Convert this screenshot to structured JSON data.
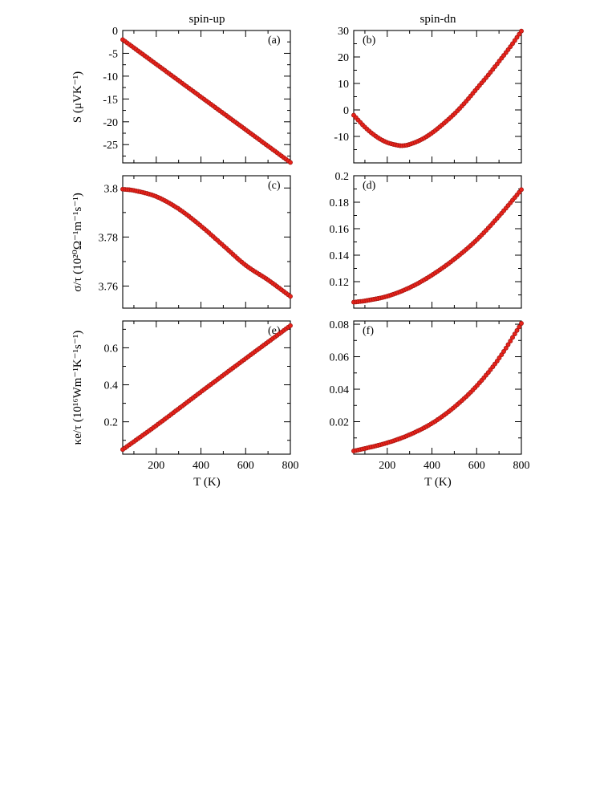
{
  "column_titles": [
    "spin-up",
    "spin-dn"
  ],
  "row_ylabels": [
    "S (μVK⁻¹)",
    "σ/τ (10²⁰Ω⁻¹m⁻¹s⁻¹)",
    "κe/τ (10¹⁶Wm⁻¹K⁻¹s⁻¹)"
  ],
  "xlabel": "T (K)",
  "colors": {
    "marker": "#e8231b",
    "marker_edge": "#9e1410",
    "axis": "#000000"
  },
  "chart_data": [
    {
      "type": "scatter",
      "label": "(a)",
      "column": "spin-up",
      "xlim": [
        50,
        800
      ],
      "ylim": [
        -29,
        0
      ],
      "xticks": [
        200,
        400,
        600,
        800
      ],
      "yticks": [
        0,
        -5,
        -10,
        -15,
        -20,
        -25
      ],
      "ytick_labels": [
        "0",
        "-5",
        "-10",
        "-15",
        "-20",
        "-25"
      ],
      "model": "linear",
      "points": [
        [
          50,
          -2.0
        ],
        [
          200,
          -7.4
        ],
        [
          400,
          -14.6
        ],
        [
          600,
          -21.8
        ],
        [
          800,
          -28.9
        ]
      ]
    },
    {
      "type": "scatter",
      "label": "(b)",
      "column": "spin-dn",
      "xlim": [
        50,
        800
      ],
      "ylim": [
        -20,
        30
      ],
      "xticks": [
        200,
        400,
        600,
        800
      ],
      "yticks": [
        30,
        20,
        10,
        0,
        -10
      ],
      "ytick_labels": [
        "30",
        "20",
        "10",
        "0",
        "-10"
      ],
      "model": "spline",
      "points": [
        [
          50,
          -2.0
        ],
        [
          100,
          -6.5
        ],
        [
          150,
          -10.0
        ],
        [
          200,
          -12.3
        ],
        [
          250,
          -13.4
        ],
        [
          270,
          -13.5
        ],
        [
          300,
          -13.0
        ],
        [
          350,
          -11.3
        ],
        [
          400,
          -8.7
        ],
        [
          450,
          -5.3
        ],
        [
          500,
          -1.5
        ],
        [
          550,
          3.0
        ],
        [
          600,
          8.0
        ],
        [
          650,
          13.0
        ],
        [
          700,
          18.3
        ],
        [
          750,
          23.8
        ],
        [
          800,
          29.8
        ]
      ]
    },
    {
      "type": "scatter",
      "label": "(c)",
      "column": "spin-up",
      "xlim": [
        50,
        800
      ],
      "ylim": [
        3.751,
        3.805
      ],
      "xticks": [
        200,
        400,
        600,
        800
      ],
      "yticks": [
        3.8,
        3.78,
        3.76
      ],
      "ytick_labels": [
        "3.8",
        "3.78",
        "3.76"
      ],
      "model": "spline",
      "points": [
        [
          50,
          3.7995
        ],
        [
          100,
          3.799
        ],
        [
          200,
          3.7965
        ],
        [
          300,
          3.7915
        ],
        [
          400,
          3.7845
        ],
        [
          500,
          3.7765
        ],
        [
          600,
          3.7685
        ],
        [
          700,
          3.7625
        ],
        [
          800,
          3.7558
        ]
      ]
    },
    {
      "type": "scatter",
      "label": "(d)",
      "column": "spin-dn",
      "xlim": [
        50,
        800
      ],
      "ylim": [
        0.1,
        0.2
      ],
      "xticks": [
        200,
        400,
        600,
        800
      ],
      "yticks": [
        0.2,
        0.18,
        0.16,
        0.14,
        0.12
      ],
      "ytick_labels": [
        "0.2",
        "0.18",
        "0.16",
        "0.14",
        "0.12"
      ],
      "model": "spline",
      "points": [
        [
          50,
          0.1045
        ],
        [
          100,
          0.1055
        ],
        [
          200,
          0.109
        ],
        [
          300,
          0.1155
        ],
        [
          400,
          0.125
        ],
        [
          500,
          0.137
        ],
        [
          600,
          0.1515
        ],
        [
          700,
          0.1695
        ],
        [
          800,
          0.1895
        ]
      ]
    },
    {
      "type": "scatter",
      "label": "(e)",
      "column": "spin-up",
      "xlim": [
        50,
        800
      ],
      "ylim": [
        0.025,
        0.745
      ],
      "xticks": [
        200,
        400,
        600,
        800
      ],
      "yticks": [
        0.6,
        0.4,
        0.2
      ],
      "ytick_labels": [
        "0.6",
        "0.4",
        "0.2"
      ],
      "model": "spline",
      "points": [
        [
          50,
          0.05
        ],
        [
          200,
          0.18
        ],
        [
          400,
          0.362
        ],
        [
          600,
          0.542
        ],
        [
          800,
          0.72
        ]
      ]
    },
    {
      "type": "scatter",
      "label": "(f)",
      "column": "spin-dn",
      "xlim": [
        50,
        800
      ],
      "ylim": [
        0,
        0.082
      ],
      "xticks": [
        200,
        400,
        600,
        800
      ],
      "yticks": [
        0.08,
        0.06,
        0.04,
        0.02
      ],
      "ytick_labels": [
        "0.08",
        "0.06",
        "0.04",
        "0.02"
      ],
      "model": "spline",
      "points": [
        [
          50,
          0.002
        ],
        [
          100,
          0.0035
        ],
        [
          200,
          0.007
        ],
        [
          300,
          0.012
        ],
        [
          400,
          0.019
        ],
        [
          500,
          0.029
        ],
        [
          600,
          0.042
        ],
        [
          700,
          0.059
        ],
        [
          800,
          0.0805
        ]
      ]
    }
  ]
}
